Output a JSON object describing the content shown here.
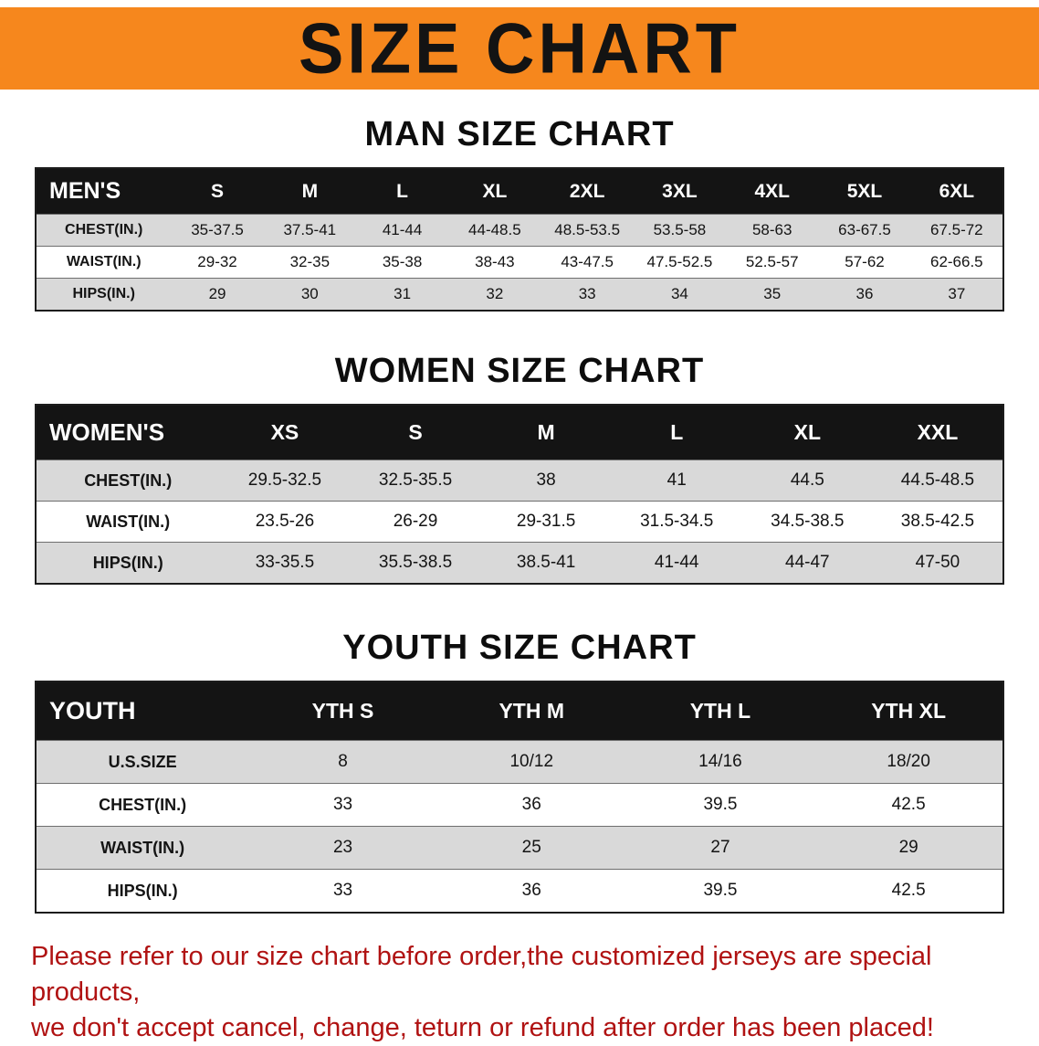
{
  "banner": {
    "title": "SIZE CHART"
  },
  "colors": {
    "banner-bg": "#f6871d",
    "header-bg": "#141414",
    "stripe": "#d9d9d9",
    "disclaimer-color": "#b01212"
  },
  "men": {
    "heading": "MAN SIZE CHART",
    "table": {
      "header": [
        "MEN'S",
        "S",
        "M",
        "L",
        "XL",
        "2XL",
        "3XL",
        "4XL",
        "5XL",
        "6XL"
      ],
      "rows": [
        [
          "CHEST(IN.)",
          "35-37.5",
          "37.5-41",
          "41-44",
          "44-48.5",
          "48.5-53.5",
          "53.5-58",
          "58-63",
          "63-67.5",
          "67.5-72"
        ],
        [
          "WAIST(IN.)",
          "29-32",
          "32-35",
          "35-38",
          "38-43",
          "43-47.5",
          "47.5-52.5",
          "52.5-57",
          "57-62",
          "62-66.5"
        ],
        [
          "HIPS(IN.)",
          "29",
          "30",
          "31",
          "32",
          "33",
          "34",
          "35",
          "36",
          "37"
        ]
      ]
    }
  },
  "women": {
    "heading": "WOMEN SIZE CHART",
    "table": {
      "header": [
        "WOMEN'S",
        "XS",
        "S",
        "M",
        "L",
        "XL",
        "XXL"
      ],
      "rows": [
        [
          "CHEST(IN.)",
          "29.5-32.5",
          "32.5-35.5",
          "38",
          "41",
          "44.5",
          "44.5-48.5"
        ],
        [
          "WAIST(IN.)",
          "23.5-26",
          "26-29",
          "29-31.5",
          "31.5-34.5",
          "34.5-38.5",
          "38.5-42.5"
        ],
        [
          "HIPS(IN.)",
          "33-35.5",
          "35.5-38.5",
          "38.5-41",
          "41-44",
          "44-47",
          "47-50"
        ]
      ]
    }
  },
  "youth": {
    "heading": "YOUTH SIZE CHART",
    "table": {
      "header": [
        "YOUTH",
        "YTH S",
        "YTH M",
        "YTH L",
        "YTH XL"
      ],
      "rows": [
        [
          "U.S.SIZE",
          "8",
          "10/12",
          "14/16",
          "18/20"
        ],
        [
          "CHEST(IN.)",
          "33",
          "36",
          "39.5",
          "42.5"
        ],
        [
          "WAIST(IN.)",
          "23",
          "25",
          "27",
          "29"
        ],
        [
          "HIPS(IN.)",
          "33",
          "36",
          "39.5",
          "42.5"
        ]
      ]
    }
  },
  "disclaimer": {
    "line1": "Please refer to our size chart before order,the customized jerseys are special products,",
    "line2": "we don't accept cancel, change, teturn or refund after order has been placed!"
  }
}
